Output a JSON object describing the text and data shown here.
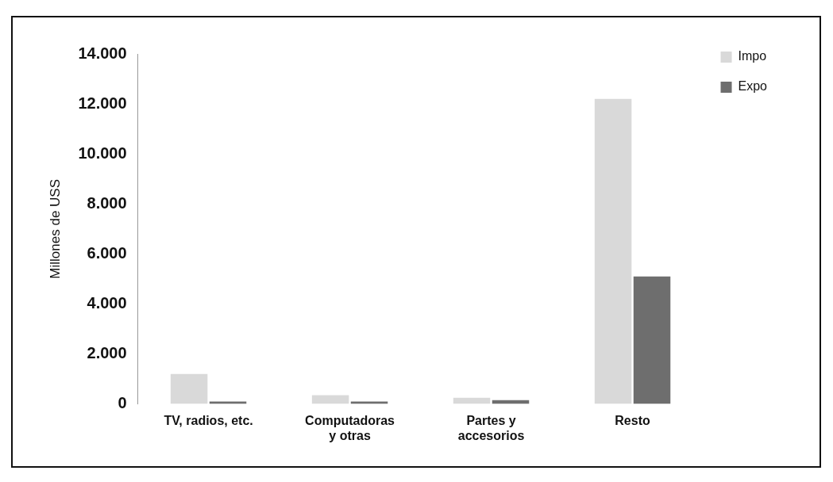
{
  "chart_data": {
    "type": "bar",
    "ylabel": "Millones de USS",
    "categories": [
      "TV, radios, etc.",
      "Computadoras\ny otras",
      "Partes y\naccesorios",
      "Resto"
    ],
    "series": [
      {
        "name": "Impo",
        "color": "#d9d9d9",
        "values": [
          1200,
          350,
          250,
          12200
        ]
      },
      {
        "name": "Expo",
        "color": "#6e6e6e",
        "values": [
          100,
          100,
          150,
          5100
        ]
      }
    ],
    "ylim": [
      0,
      14000
    ],
    "yticks": [
      {
        "value": 0,
        "label": "0"
      },
      {
        "value": 2000,
        "label": "2.000"
      },
      {
        "value": 4000,
        "label": "4.000"
      },
      {
        "value": 6000,
        "label": "6.000"
      },
      {
        "value": 8000,
        "label": "8.000"
      },
      {
        "value": 10000,
        "label": "10.000"
      },
      {
        "value": 12000,
        "label": "12.000"
      },
      {
        "value": 14000,
        "label": "14.000"
      }
    ],
    "legend": "right"
  }
}
